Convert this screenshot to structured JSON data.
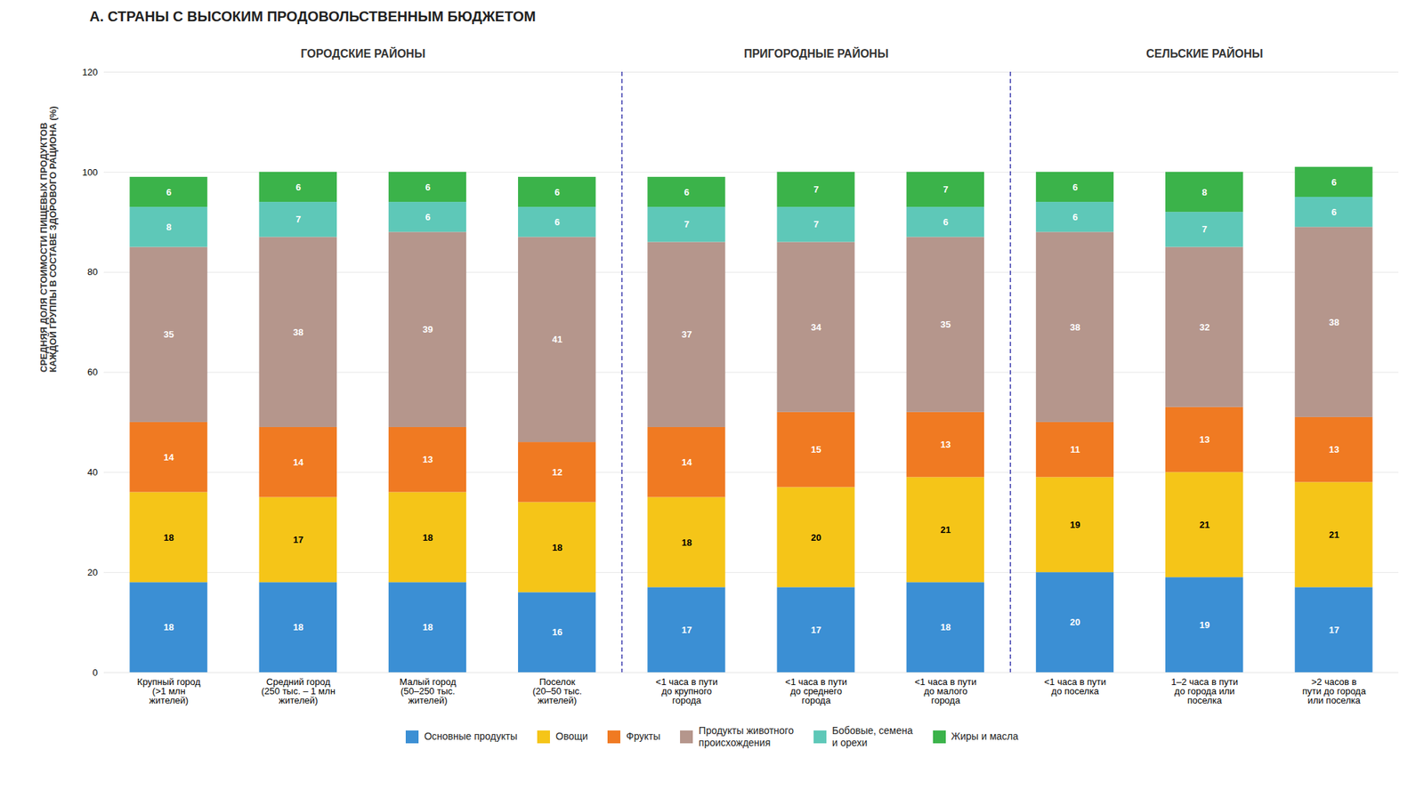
{
  "chart_data": {
    "type": "bar",
    "stacked": true,
    "title": "А. СТРАНЫ С ВЫСОКИМ ПРОДОВОЛЬСТВЕННЫМ БЮДЖЕТОМ",
    "ylabel": "СРЕДНЯЯ ДОЛЯ СТОИМОСТИ ПИЩЕВЫХ ПРОДУКТОВ\nКАЖДОЙ ГРУППЫ В СОСТАВЕ ЗДОРОВОГО РАЦИОНА (%)",
    "categories": [
      "Крупный город\n(>1 млн\nжителей)",
      "Средний город\n(250 тыс. – 1 млн\nжителей)",
      "Малый город\n(50–250 тыс.\nжителей)",
      "Поселок\n(20–50 тыс.\nжителей)",
      "<1 часа в пути\nдо крупного\nгорода",
      "<1 часа в пути\nдо среднего\nгорода",
      "<1 часа в пути\nдо малого\nгорода",
      "<1 часа в пути\nдо поселка",
      "1–2 часа в пути\nдо города или\nпоселка",
      ">2 часов в\nпути до города\nили поселка"
    ],
    "groups": [
      {
        "name": "ГОРОДСКИЕ РАЙОНЫ",
        "count": 4
      },
      {
        "name": "ПРИГОРОДНЫЕ РАЙОНЫ",
        "count": 3
      },
      {
        "name": "СЕЛЬСКИЕ РАЙОНЫ",
        "count": 3
      }
    ],
    "series": [
      {
        "name": "Основные продукты",
        "color": "#3b8fd4",
        "values": [
          18,
          18,
          18,
          16,
          17,
          17,
          18,
          20,
          19,
          17
        ]
      },
      {
        "name": "Овощи",
        "color": "#f5c518",
        "values": [
          18,
          17,
          18,
          18,
          18,
          20,
          21,
          19,
          21,
          21
        ]
      },
      {
        "name": "Фрукты",
        "color": "#f07a22",
        "values": [
          14,
          14,
          13,
          12,
          14,
          15,
          13,
          11,
          13,
          13
        ]
      },
      {
        "name": "Продукты животного\nпроисхождения",
        "color": "#b5968c",
        "values": [
          35,
          38,
          39,
          41,
          37,
          34,
          35,
          38,
          32,
          38
        ]
      },
      {
        "name": "Бобовые, семена\nи орехи",
        "color": "#5ec8b8",
        "values": [
          8,
          7,
          6,
          6,
          7,
          7,
          6,
          6,
          7,
          6
        ]
      },
      {
        "name": "Жиры и масла",
        "color": "#3bb34a",
        "values": [
          6,
          6,
          6,
          6,
          6,
          7,
          7,
          6,
          8,
          6
        ]
      }
    ],
    "ylim": [
      0,
      120
    ],
    "yticks": [
      0,
      20,
      40,
      60,
      80,
      100,
      120
    ],
    "grid": true,
    "data_labels": true,
    "legend": "bottom"
  }
}
